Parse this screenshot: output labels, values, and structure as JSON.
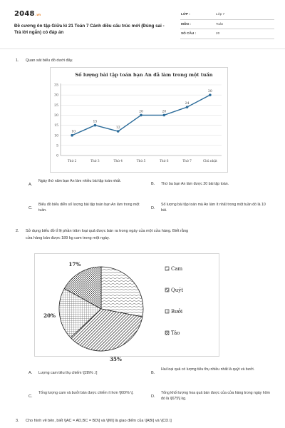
{
  "header": {
    "logo_main": "2048",
    "logo_suffix": ".vn",
    "title": "Đề cương ôn tập Giữa kì 21 Toán 7 Cánh diều cấu trúc mới (Đúng sai - Trả lời ngắn) có đáp án",
    "meta": [
      {
        "key": "LỚP :",
        "value": "Lớp 7"
      },
      {
        "key": "MÔN :",
        "value": "Toán"
      },
      {
        "key": "SỐ CÂU :",
        "value": "20"
      }
    ]
  },
  "questions": [
    {
      "number": "1.",
      "text": "Quan sát biểu đồ dưới đây.",
      "options": [
        {
          "letter": "A.",
          "text": "Ngày thứ năm bạn An làm nhiều bài tập toán nhất."
        },
        {
          "letter": "B.",
          "text": "Thứ ba bạn An làm được 20 bài tập toán."
        },
        {
          "letter": "C.",
          "text": "Biểu đồ biểu diễn số lượng bài tập toán bạn An làm trong một tuần."
        },
        {
          "letter": "D.",
          "text": "Số lượng bài tập toán mà An làm ít nhất trong một tuần đó là 10 bài."
        }
      ]
    },
    {
      "number": "2.",
      "text_lines": [
        "Sử dụng biểu đồ tỉ lệ phần trăm loại quả được bán ra trong ngày của một cửa hàng. Biết rằng",
        "cửa hàng bán được 189 kg cam trong một ngày."
      ],
      "options": [
        {
          "letter": "A.",
          "text": "Lượng cam tiêu thụ chiếm \\[28\\% .\\]"
        },
        {
          "letter": "B.",
          "text": "Hai loại quả có lượng tiêu thụ nhiều nhất là quýt và bưởi."
        },
        {
          "letter": "C.",
          "text": "Tổng lượng cam và bưởi bán được chiếm ít hơn \\[60\\% \\]."
        },
        {
          "letter": "D.",
          "text": "Tổng khối lượng hoa quả bán được của cửa hàng trong ngày hôm đó là \\[675\\] kg."
        }
      ]
    },
    {
      "number": "3.",
      "text": "Cho hình vẽ bên, biết \\[AC = AD,BC = BD\\] và \\[M\\] là giao điểm của \\[AB\\] và \\[CD.\\]"
    }
  ],
  "chart_data": [
    {
      "type": "line",
      "title": "Số lượng bài tập toán bạn An đã làm trong một tuần",
      "categories": [
        "Thứ 2",
        "Thứ 3",
        "Thứ 4",
        "Thứ 5",
        "Thứ 6",
        "Thứ 7",
        "Chủ nhật"
      ],
      "values": [
        10,
        15,
        12,
        20,
        20,
        24,
        30
      ],
      "ylim": [
        0,
        35
      ],
      "yticks": [
        0,
        5,
        10,
        15,
        20,
        25,
        30,
        35
      ],
      "grid": true,
      "line_color": "#2b6b99"
    },
    {
      "type": "pie",
      "labels": [
        "Cam",
        "Quýt",
        "Bưởi",
        "Táo"
      ],
      "values": [
        28,
        35,
        20,
        17
      ],
      "percent_labels": [
        "35%",
        "20%",
        "17%"
      ],
      "legend": "right"
    }
  ]
}
